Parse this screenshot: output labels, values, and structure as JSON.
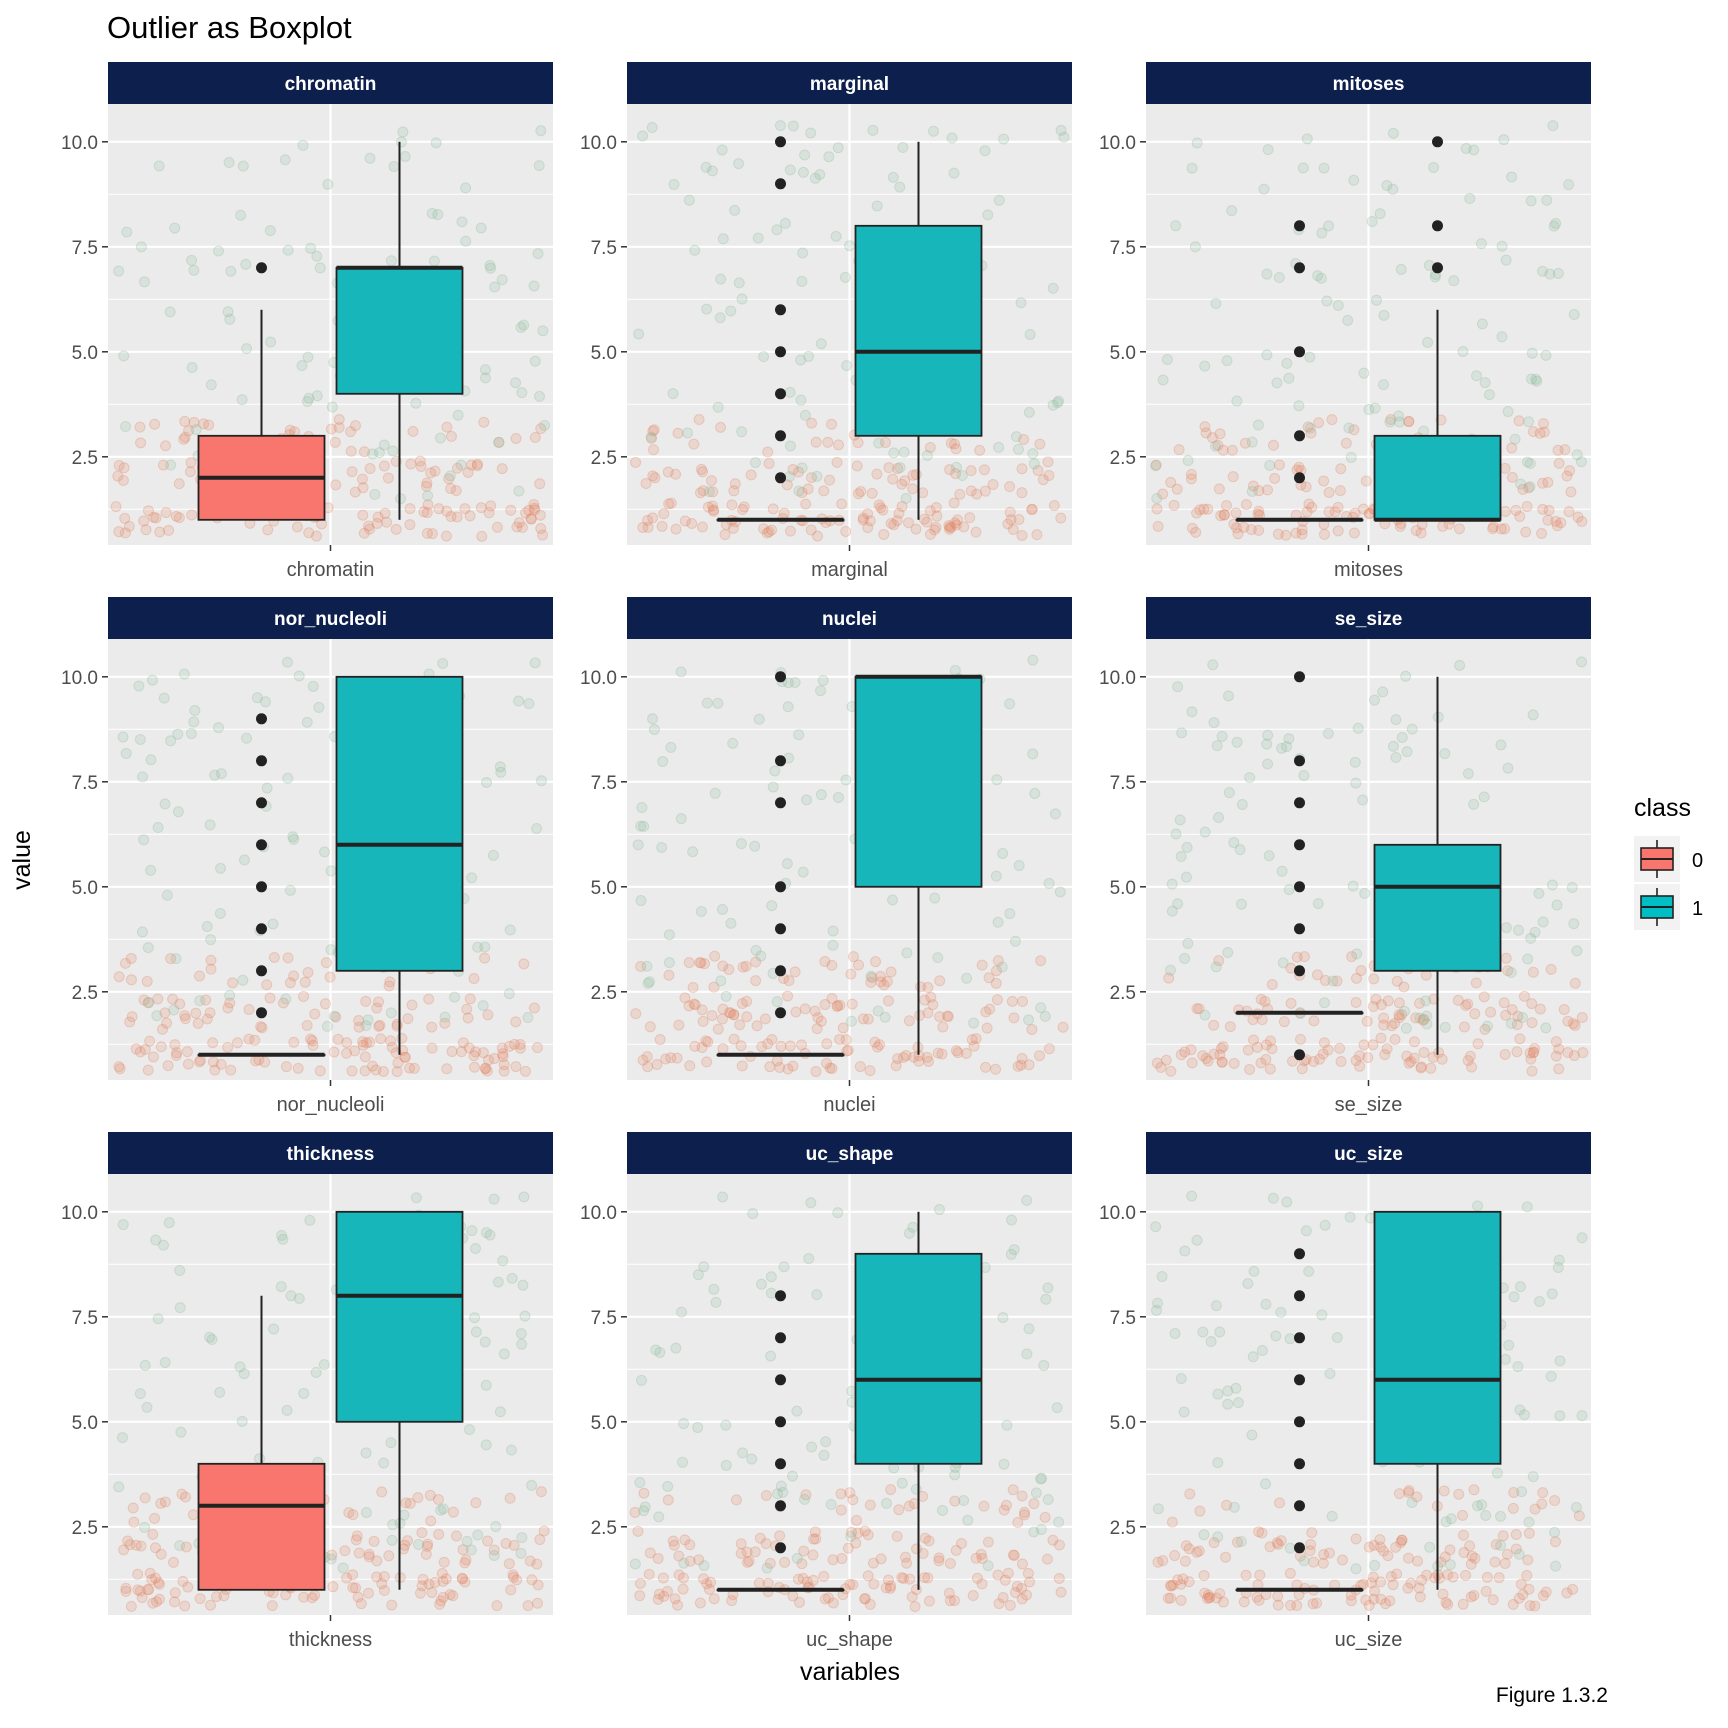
{
  "chart_data": {
    "type": "boxplot",
    "title": "Outlier as Boxplot",
    "xlabel": "variables",
    "ylabel": "value",
    "ylim": [
      0.4,
      10.9
    ],
    "yticks": [
      "2.5",
      "5.0",
      "7.5",
      "10.0"
    ],
    "grid": true,
    "legend": {
      "title": "class",
      "position": "right",
      "entries": [
        {
          "label": "0",
          "color": "#F8766D"
        },
        {
          "label": "1",
          "color": "#00BFC4"
        }
      ]
    },
    "colors": {
      "strip_bg": "#0D1F4D",
      "strip_text": "#ffffff",
      "panel_bg": "#EBEBEB",
      "box_class0": "#F8766D",
      "box_class1": "#17B6BA",
      "jitter_class0": "#E08060",
      "jitter_class1": "#8BB89A"
    },
    "panels": [
      {
        "name": "chromatin",
        "xtick": "chromatin",
        "boxes": [
          {
            "class": "0",
            "min": 1,
            "q1": 1,
            "median": 2,
            "q3": 3,
            "max": 6,
            "outliers": [
              7
            ]
          },
          {
            "class": "1",
            "min": 1,
            "q1": 4,
            "median": 7,
            "q3": 7,
            "max": 10,
            "outliers": []
          }
        ]
      },
      {
        "name": "marginal",
        "xtick": "marginal",
        "boxes": [
          {
            "class": "0",
            "min": 1,
            "q1": 1,
            "median": 1,
            "q3": 1,
            "max": 1,
            "outliers": [
              2,
              3,
              4,
              5,
              6,
              9,
              10
            ]
          },
          {
            "class": "1",
            "min": 1,
            "q1": 3,
            "median": 5,
            "q3": 8,
            "max": 10,
            "outliers": []
          }
        ]
      },
      {
        "name": "mitoses",
        "xtick": "mitoses",
        "boxes": [
          {
            "class": "0",
            "min": 1,
            "q1": 1,
            "median": 1,
            "q3": 1,
            "max": 1,
            "outliers": [
              2,
              3,
              5,
              7,
              8
            ]
          },
          {
            "class": "1",
            "min": 1,
            "q1": 1,
            "median": 1,
            "q3": 3,
            "max": 6,
            "outliers": [
              7,
              8,
              10
            ]
          }
        ]
      },
      {
        "name": "nor_nucleoli",
        "xtick": "nor_nucleoli",
        "boxes": [
          {
            "class": "0",
            "min": 1,
            "q1": 1,
            "median": 1,
            "q3": 1,
            "max": 1,
            "outliers": [
              2,
              3,
              4,
              5,
              6,
              7,
              8,
              9
            ]
          },
          {
            "class": "1",
            "min": 1,
            "q1": 3,
            "median": 6,
            "q3": 10,
            "max": 10,
            "outliers": []
          }
        ]
      },
      {
        "name": "nuclei",
        "xtick": "nuclei",
        "boxes": [
          {
            "class": "0",
            "min": 1,
            "q1": 1,
            "median": 1,
            "q3": 1,
            "max": 1,
            "outliers": [
              2,
              3,
              4,
              5,
              7,
              8,
              10
            ]
          },
          {
            "class": "1",
            "min": 1,
            "q1": 5,
            "median": 10,
            "q3": 10,
            "max": 10,
            "outliers": []
          }
        ]
      },
      {
        "name": "se_size",
        "xtick": "se_size",
        "boxes": [
          {
            "class": "0",
            "min": 2,
            "q1": 2,
            "median": 2,
            "q3": 2,
            "max": 2,
            "outliers": [
              1,
              3,
              4,
              5,
              6,
              7,
              8,
              10
            ]
          },
          {
            "class": "1",
            "min": 1,
            "q1": 3,
            "median": 5,
            "q3": 6,
            "max": 10,
            "outliers": []
          }
        ]
      },
      {
        "name": "thickness",
        "xtick": "thickness",
        "boxes": [
          {
            "class": "0",
            "min": 1,
            "q1": 1,
            "median": 3,
            "q3": 4,
            "max": 8,
            "outliers": []
          },
          {
            "class": "1",
            "min": 1,
            "q1": 5,
            "median": 8,
            "q3": 10,
            "max": 10,
            "outliers": []
          }
        ]
      },
      {
        "name": "uc_shape",
        "xtick": "uc_shape",
        "boxes": [
          {
            "class": "0",
            "min": 1,
            "q1": 1,
            "median": 1,
            "q3": 1,
            "max": 1,
            "outliers": [
              2,
              3,
              4,
              5,
              6,
              7,
              8
            ]
          },
          {
            "class": "1",
            "min": 1,
            "q1": 4,
            "median": 6,
            "q3": 9,
            "max": 10,
            "outliers": []
          }
        ]
      },
      {
        "name": "uc_size",
        "xtick": "uc_size",
        "boxes": [
          {
            "class": "0",
            "min": 1,
            "q1": 1,
            "median": 1,
            "q3": 1,
            "max": 1,
            "outliers": [
              2,
              3,
              4,
              5,
              6,
              7,
              8,
              9
            ]
          },
          {
            "class": "1",
            "min": 1,
            "q1": 4,
            "median": 6,
            "q3": 10,
            "max": 10,
            "outliers": []
          }
        ]
      }
    ]
  },
  "caption": "Figure 1.3.2"
}
